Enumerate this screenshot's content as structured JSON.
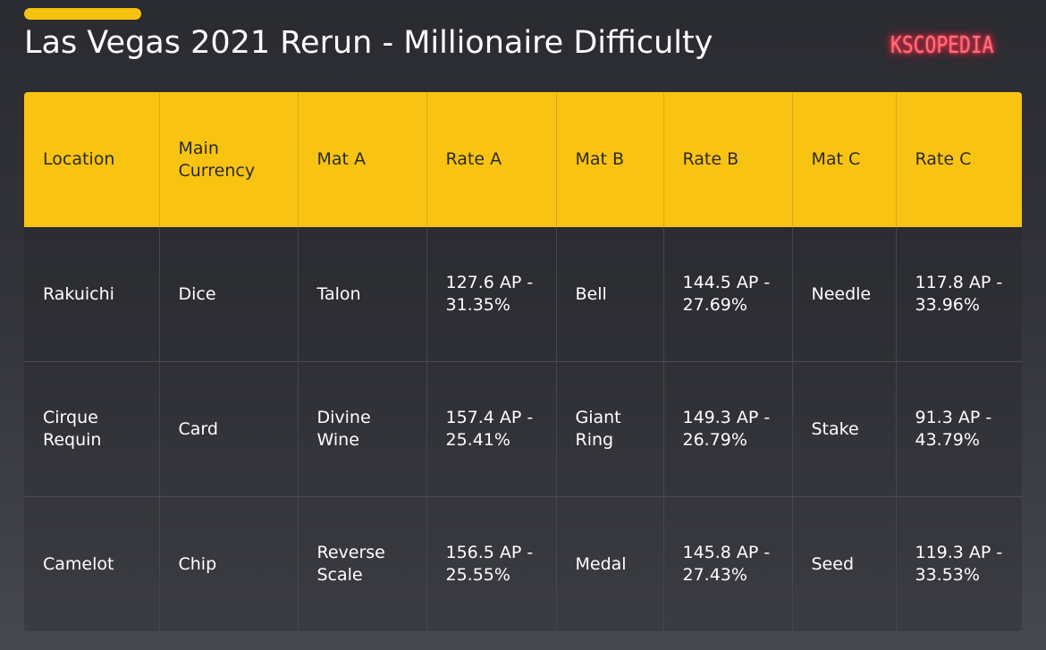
{
  "header": {
    "title": "Las Vegas 2021 Rerun - Millionaire Difficulty",
    "logo_text": "KSCOPEDIA",
    "accent_color": "#f7c20f",
    "logo_color": "#ff6f7d"
  },
  "table": {
    "header_color": "#f9c312",
    "columns": [
      "Location",
      "Main Currency",
      "Mat A",
      "Rate A",
      "Mat B",
      "Rate B",
      "Mat C",
      "Rate C"
    ],
    "rows": [
      [
        "Rakuichi",
        "Dice",
        "Talon",
        "127.6 AP - 31.35%",
        "Bell",
        "144.5 AP - 27.69%",
        "Needle",
        "117.8 AP - 33.96%"
      ],
      [
        "Cirque Requin",
        "Card",
        "Divine Wine",
        "157.4 AP - 25.41%",
        "Giant Ring",
        "149.3 AP - 26.79%",
        "Stake",
        "91.3 AP - 43.79%"
      ],
      [
        "Camelot",
        "Chip",
        "Reverse Scale",
        "156.5 AP - 25.55%",
        "Medal",
        "145.8 AP - 27.43%",
        "Seed",
        "119.3 AP - 33.53%"
      ]
    ]
  }
}
